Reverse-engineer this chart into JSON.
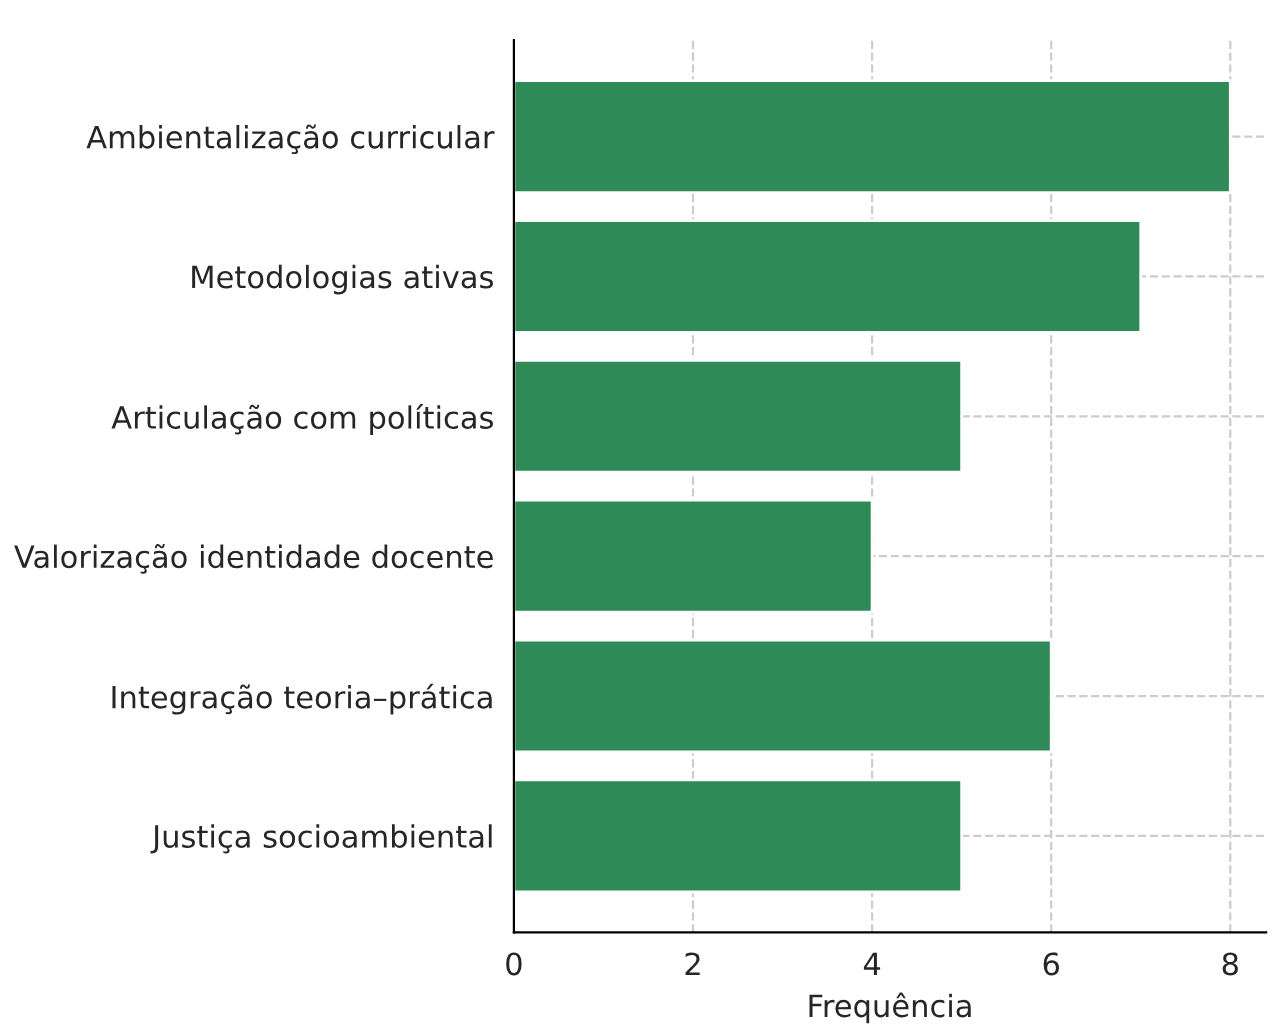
{
  "chart_data": {
    "type": "bar",
    "orientation": "horizontal",
    "categories": [
      "Ambientalização curricular",
      "Metodologias ativas",
      "Articulação com políticas",
      "Valorização identidade docente",
      "Integração teoria–prática",
      "Justiça socioambiental"
    ],
    "values": [
      8,
      7,
      5,
      4,
      6,
      5
    ],
    "color": "#2e8b57",
    "xlabel": "Frequência",
    "xlim": [
      0,
      8.4
    ],
    "xticks": [
      0,
      2,
      4,
      6,
      8
    ],
    "grid": true
  }
}
